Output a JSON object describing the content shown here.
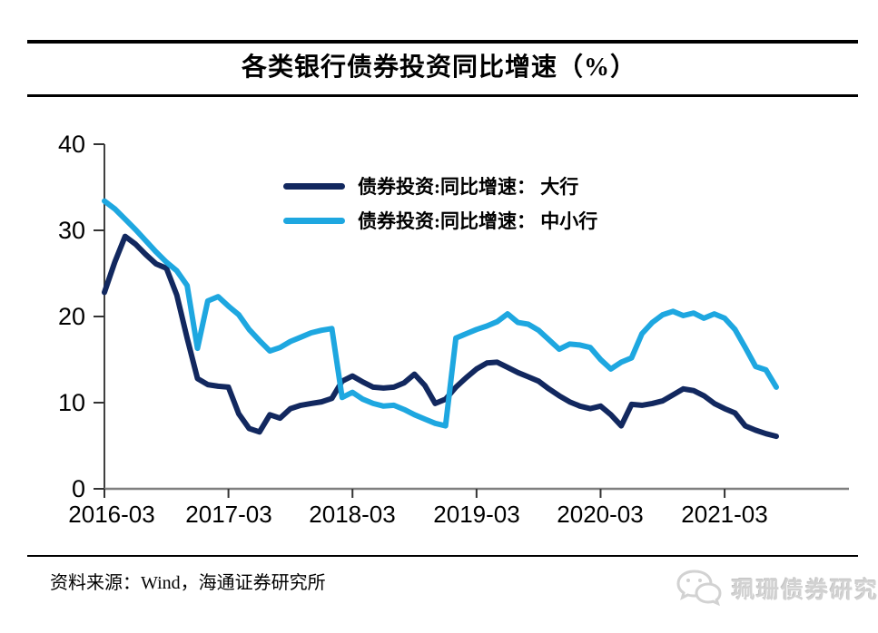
{
  "title": "各类银行债券投资同比增速（%）",
  "source_note": "资料来源：Wind，海通证券研究所",
  "watermark_text": "珮珊债券研究",
  "colors": {
    "large_banks": "#12285f",
    "small_mid_banks": "#1ea7e0",
    "axis_line": "#7f7f7f",
    "y_axis_line": "#404040",
    "tick": "#333333",
    "watermark": "#d2d2d2"
  },
  "chart_data": {
    "type": "line",
    "title": "各类银行债券投资同比增速（%）",
    "xlabel": "",
    "ylabel": "",
    "ylim": [
      0,
      40
    ],
    "grid": false,
    "legend_position": "upper-center-inside",
    "y_tick_labels": [
      "40",
      "30",
      "20",
      "10",
      "0"
    ],
    "y_tick_values": [
      40,
      30,
      20,
      10,
      0
    ],
    "x_tick_labels": [
      "2016-03",
      "2017-03",
      "2018-03",
      "2019-03",
      "2020-03",
      "2021-03"
    ],
    "x": [
      "2016-03",
      "2016-04",
      "2016-05",
      "2016-06",
      "2016-07",
      "2016-08",
      "2016-09",
      "2016-10",
      "2016-11",
      "2016-12",
      "2017-01",
      "2017-02",
      "2017-03",
      "2017-04",
      "2017-05",
      "2017-06",
      "2017-07",
      "2017-08",
      "2017-09",
      "2017-10",
      "2017-11",
      "2017-12",
      "2018-01",
      "2018-02",
      "2018-03",
      "2018-04",
      "2018-05",
      "2018-06",
      "2018-07",
      "2018-08",
      "2018-09",
      "2018-10",
      "2018-11",
      "2018-12",
      "2019-01",
      "2019-02",
      "2019-03",
      "2019-04",
      "2019-05",
      "2019-06",
      "2019-07",
      "2019-08",
      "2019-09",
      "2019-10",
      "2019-11",
      "2019-12",
      "2020-01",
      "2020-02",
      "2020-03",
      "2020-04",
      "2020-05",
      "2020-06",
      "2020-07",
      "2020-08",
      "2020-09",
      "2020-10",
      "2020-11",
      "2020-12",
      "2021-01",
      "2021-02",
      "2021-03",
      "2021-04",
      "2021-05",
      "2021-06",
      "2021-07",
      "2021-08"
    ],
    "legend": [
      {
        "label": "债券投资:同比增速： 大行"
      },
      {
        "label": "债券投资:同比增速： 中小行"
      }
    ],
    "series": [
      {
        "name": "债券投资:同比增速： 大行",
        "color": "#12285f",
        "values": [
          22.8,
          26.3,
          29.3,
          28.4,
          27.2,
          26.1,
          25.6,
          22.5,
          17.5,
          12.8,
          12.1,
          11.9,
          11.8,
          8.7,
          7.0,
          6.6,
          8.6,
          8.2,
          9.3,
          9.7,
          9.9,
          10.1,
          10.5,
          12.5,
          13.1,
          12.4,
          11.8,
          11.7,
          11.8,
          12.3,
          13.3,
          12.0,
          9.9,
          10.4,
          11.8,
          12.9,
          13.9,
          14.6,
          14.7,
          14.1,
          13.5,
          13.0,
          12.5,
          11.6,
          10.8,
          10.1,
          9.6,
          9.3,
          9.6,
          8.6,
          7.3,
          9.8,
          9.7,
          9.9,
          10.2,
          10.9,
          11.6,
          11.4,
          10.8,
          9.9,
          9.3,
          8.8,
          7.3,
          6.8,
          6.4,
          6.1
        ]
      },
      {
        "name": "债券投资:同比增速： 中小行",
        "color": "#1ea7e0",
        "values": [
          33.4,
          32.5,
          31.3,
          30.1,
          28.8,
          27.5,
          26.3,
          25.3,
          23.6,
          16.3,
          21.8,
          22.3,
          21.2,
          20.2,
          18.5,
          17.2,
          16.0,
          16.4,
          17.1,
          17.6,
          18.1,
          18.4,
          18.6,
          10.6,
          11.2,
          10.4,
          9.9,
          9.6,
          9.7,
          9.2,
          8.6,
          8.1,
          7.6,
          7.3,
          17.5,
          18.0,
          18.5,
          18.9,
          19.4,
          20.3,
          19.3,
          19.1,
          18.4,
          17.3,
          16.2,
          16.8,
          16.7,
          16.4,
          15.0,
          13.9,
          14.7,
          15.2,
          18.0,
          19.3,
          20.2,
          20.6,
          20.1,
          20.4,
          19.8,
          20.3,
          19.8,
          18.5,
          16.4,
          14.2,
          13.8,
          11.8
        ]
      }
    ]
  }
}
